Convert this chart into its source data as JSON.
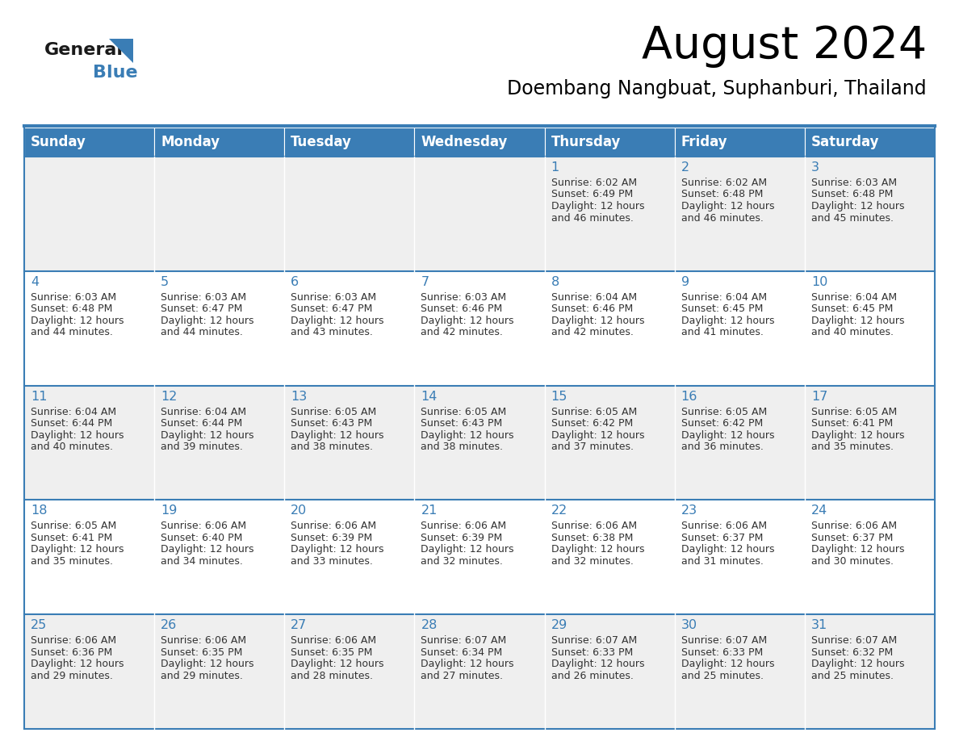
{
  "title": "August 2024",
  "subtitle": "Doembang Nangbuat, Suphanburi, Thailand",
  "days_of_week": [
    "Sunday",
    "Monday",
    "Tuesday",
    "Wednesday",
    "Thursday",
    "Friday",
    "Saturday"
  ],
  "header_bg": "#3a7db5",
  "header_text": "#ffffff",
  "row_bg_odd": "#efefef",
  "row_bg_even": "#ffffff",
  "day_number_color": "#3a7db5",
  "cell_text_color": "#333333",
  "border_color": "#3a7db5",
  "logo_general_color": "#1a1a1a",
  "logo_blue_color": "#3a7db5",
  "logo_triangle_color": "#3a7db5",
  "calendar_data": [
    [
      null,
      null,
      null,
      null,
      {
        "day": 1,
        "sunrise": "6:02 AM",
        "sunset": "6:49 PM",
        "daylight": "12 hours and 46 minutes"
      },
      {
        "day": 2,
        "sunrise": "6:02 AM",
        "sunset": "6:48 PM",
        "daylight": "12 hours and 46 minutes"
      },
      {
        "day": 3,
        "sunrise": "6:03 AM",
        "sunset": "6:48 PM",
        "daylight": "12 hours and 45 minutes"
      }
    ],
    [
      {
        "day": 4,
        "sunrise": "6:03 AM",
        "sunset": "6:48 PM",
        "daylight": "12 hours and 44 minutes"
      },
      {
        "day": 5,
        "sunrise": "6:03 AM",
        "sunset": "6:47 PM",
        "daylight": "12 hours and 44 minutes"
      },
      {
        "day": 6,
        "sunrise": "6:03 AM",
        "sunset": "6:47 PM",
        "daylight": "12 hours and 43 minutes"
      },
      {
        "day": 7,
        "sunrise": "6:03 AM",
        "sunset": "6:46 PM",
        "daylight": "12 hours and 42 minutes"
      },
      {
        "day": 8,
        "sunrise": "6:04 AM",
        "sunset": "6:46 PM",
        "daylight": "12 hours and 42 minutes"
      },
      {
        "day": 9,
        "sunrise": "6:04 AM",
        "sunset": "6:45 PM",
        "daylight": "12 hours and 41 minutes"
      },
      {
        "day": 10,
        "sunrise": "6:04 AM",
        "sunset": "6:45 PM",
        "daylight": "12 hours and 40 minutes"
      }
    ],
    [
      {
        "day": 11,
        "sunrise": "6:04 AM",
        "sunset": "6:44 PM",
        "daylight": "12 hours and 40 minutes"
      },
      {
        "day": 12,
        "sunrise": "6:04 AM",
        "sunset": "6:44 PM",
        "daylight": "12 hours and 39 minutes"
      },
      {
        "day": 13,
        "sunrise": "6:05 AM",
        "sunset": "6:43 PM",
        "daylight": "12 hours and 38 minutes"
      },
      {
        "day": 14,
        "sunrise": "6:05 AM",
        "sunset": "6:43 PM",
        "daylight": "12 hours and 38 minutes"
      },
      {
        "day": 15,
        "sunrise": "6:05 AM",
        "sunset": "6:42 PM",
        "daylight": "12 hours and 37 minutes"
      },
      {
        "day": 16,
        "sunrise": "6:05 AM",
        "sunset": "6:42 PM",
        "daylight": "12 hours and 36 minutes"
      },
      {
        "day": 17,
        "sunrise": "6:05 AM",
        "sunset": "6:41 PM",
        "daylight": "12 hours and 35 minutes"
      }
    ],
    [
      {
        "day": 18,
        "sunrise": "6:05 AM",
        "sunset": "6:41 PM",
        "daylight": "12 hours and 35 minutes"
      },
      {
        "day": 19,
        "sunrise": "6:06 AM",
        "sunset": "6:40 PM",
        "daylight": "12 hours and 34 minutes"
      },
      {
        "day": 20,
        "sunrise": "6:06 AM",
        "sunset": "6:39 PM",
        "daylight": "12 hours and 33 minutes"
      },
      {
        "day": 21,
        "sunrise": "6:06 AM",
        "sunset": "6:39 PM",
        "daylight": "12 hours and 32 minutes"
      },
      {
        "day": 22,
        "sunrise": "6:06 AM",
        "sunset": "6:38 PM",
        "daylight": "12 hours and 32 minutes"
      },
      {
        "day": 23,
        "sunrise": "6:06 AM",
        "sunset": "6:37 PM",
        "daylight": "12 hours and 31 minutes"
      },
      {
        "day": 24,
        "sunrise": "6:06 AM",
        "sunset": "6:37 PM",
        "daylight": "12 hours and 30 minutes"
      }
    ],
    [
      {
        "day": 25,
        "sunrise": "6:06 AM",
        "sunset": "6:36 PM",
        "daylight": "12 hours and 29 minutes"
      },
      {
        "day": 26,
        "sunrise": "6:06 AM",
        "sunset": "6:35 PM",
        "daylight": "12 hours and 29 minutes"
      },
      {
        "day": 27,
        "sunrise": "6:06 AM",
        "sunset": "6:35 PM",
        "daylight": "12 hours and 28 minutes"
      },
      {
        "day": 28,
        "sunrise": "6:07 AM",
        "sunset": "6:34 PM",
        "daylight": "12 hours and 27 minutes"
      },
      {
        "day": 29,
        "sunrise": "6:07 AM",
        "sunset": "6:33 PM",
        "daylight": "12 hours and 26 minutes"
      },
      {
        "day": 30,
        "sunrise": "6:07 AM",
        "sunset": "6:33 PM",
        "daylight": "12 hours and 25 minutes"
      },
      {
        "day": 31,
        "sunrise": "6:07 AM",
        "sunset": "6:32 PM",
        "daylight": "12 hours and 25 minutes"
      }
    ]
  ]
}
